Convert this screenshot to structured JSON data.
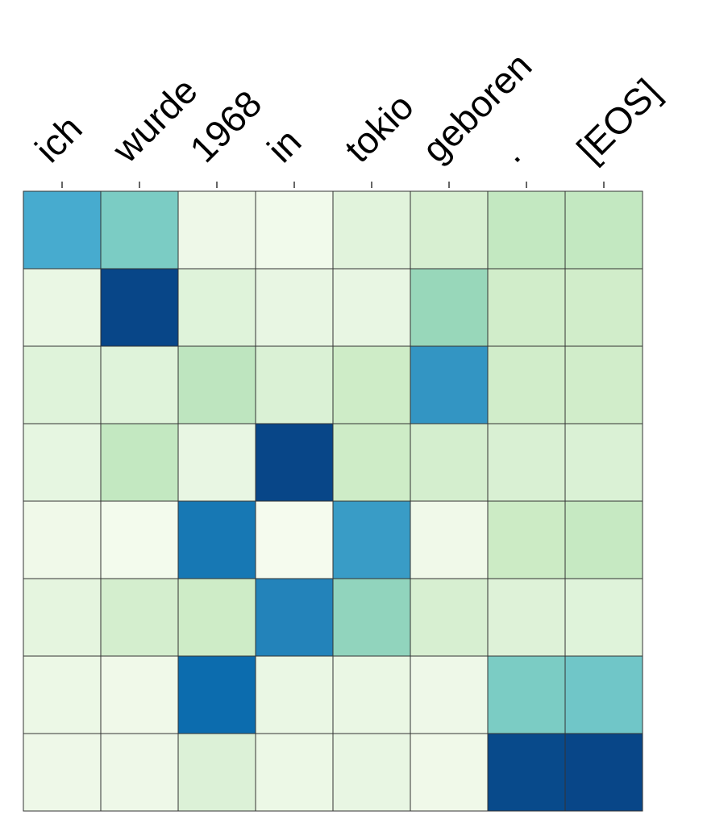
{
  "chart_data": {
    "type": "heatmap",
    "title": "",
    "xlabel": "",
    "ylabel": "",
    "x_tick_labels": [
      "ich",
      "wurde",
      "1968",
      "in",
      "tokio",
      "geboren",
      ".",
      "[EOS]"
    ],
    "x_axis_position": "top",
    "y_tick_labels": [],
    "colormap": "GnBu",
    "value_range": [
      0,
      1
    ],
    "grid": true,
    "grid_color": "#333333",
    "values": [
      [
        0.65,
        0.5,
        0.05,
        0.03,
        0.12,
        0.18,
        0.28,
        0.28
      ],
      [
        0.07,
        0.98,
        0.13,
        0.08,
        0.08,
        0.42,
        0.22,
        0.22
      ],
      [
        0.13,
        0.13,
        0.3,
        0.16,
        0.24,
        0.72,
        0.22,
        0.22
      ],
      [
        0.09,
        0.28,
        0.08,
        0.98,
        0.24,
        0.2,
        0.17,
        0.16
      ],
      [
        0.04,
        0.02,
        0.82,
        0.01,
        0.7,
        0.04,
        0.25,
        0.27
      ],
      [
        0.1,
        0.2,
        0.24,
        0.78,
        0.44,
        0.18,
        0.14,
        0.13
      ],
      [
        0.06,
        0.04,
        0.86,
        0.07,
        0.07,
        0.05,
        0.5,
        0.53
      ],
      [
        0.05,
        0.05,
        0.15,
        0.06,
        0.08,
        0.04,
        0.97,
        0.98
      ]
    ]
  }
}
